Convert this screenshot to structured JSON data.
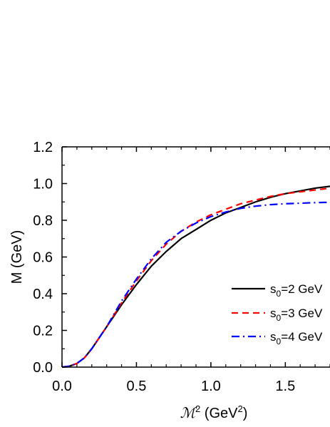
{
  "chart_data": {
    "type": "line",
    "xlabel": "ℳ² (GeV²)",
    "ylabel": "M (GeV)",
    "xlim": [
      0.0,
      1.8
    ],
    "ylim": [
      0.0,
      1.2
    ],
    "x_ticks": [
      "0.0",
      "0.5",
      "1.0",
      "1.5"
    ],
    "y_ticks": [
      "0.0",
      "0.2",
      "0.4",
      "0.6",
      "0.8",
      "1.0",
      "1.2"
    ],
    "grid": false,
    "legend_position": "lower-right",
    "series": [
      {
        "name": "s0=2 GeV",
        "color": "#000000",
        "style": "solid",
        "x": [
          0.0,
          0.05,
          0.1,
          0.15,
          0.2,
          0.3,
          0.4,
          0.5,
          0.6,
          0.7,
          0.8,
          0.9,
          1.0,
          1.1,
          1.2,
          1.3,
          1.4,
          1.5,
          1.6,
          1.7,
          1.8
        ],
        "y": [
          0.0,
          0.005,
          0.02,
          0.05,
          0.1,
          0.22,
          0.34,
          0.45,
          0.55,
          0.63,
          0.7,
          0.75,
          0.8,
          0.84,
          0.87,
          0.9,
          0.925,
          0.945,
          0.96,
          0.975,
          0.985
        ]
      },
      {
        "name": "s0=3 GeV",
        "color": "#ff0000",
        "style": "dashed",
        "x": [
          0.0,
          0.05,
          0.1,
          0.15,
          0.2,
          0.3,
          0.4,
          0.5,
          0.6,
          0.7,
          0.8,
          0.9,
          1.0,
          1.1,
          1.2,
          1.3,
          1.4,
          1.5,
          1.6,
          1.7,
          1.8
        ],
        "y": [
          0.0,
          0.005,
          0.02,
          0.05,
          0.1,
          0.22,
          0.35,
          0.47,
          0.58,
          0.67,
          0.74,
          0.79,
          0.83,
          0.86,
          0.89,
          0.91,
          0.93,
          0.945,
          0.955,
          0.965,
          0.975
        ]
      },
      {
        "name": "s0=4 GeV",
        "color": "#0000ff",
        "style": "dashdot",
        "x": [
          0.0,
          0.05,
          0.1,
          0.15,
          0.2,
          0.3,
          0.4,
          0.5,
          0.6,
          0.7,
          0.8,
          0.9,
          1.0,
          1.1,
          1.2,
          1.3,
          1.4,
          1.5,
          1.6,
          1.7,
          1.8
        ],
        "y": [
          0.0,
          0.005,
          0.02,
          0.05,
          0.1,
          0.22,
          0.36,
          0.48,
          0.59,
          0.68,
          0.74,
          0.785,
          0.82,
          0.845,
          0.865,
          0.877,
          0.885,
          0.89,
          0.893,
          0.896,
          0.898
        ]
      }
    ],
    "legend": [
      {
        "label_main": "s",
        "label_sub": "0",
        "label_rest": "=2 GeV"
      },
      {
        "label_main": "s",
        "label_sub": "0",
        "label_rest": "=3 GeV"
      },
      {
        "label_main": "s",
        "label_sub": "0",
        "label_rest": "=4 GeV"
      }
    ],
    "xlabel_parts": {
      "symbol": "ℳ",
      "sup": "2",
      "unit_open": " (GeV",
      "unit_sup": "2",
      "unit_close": ")"
    }
  }
}
